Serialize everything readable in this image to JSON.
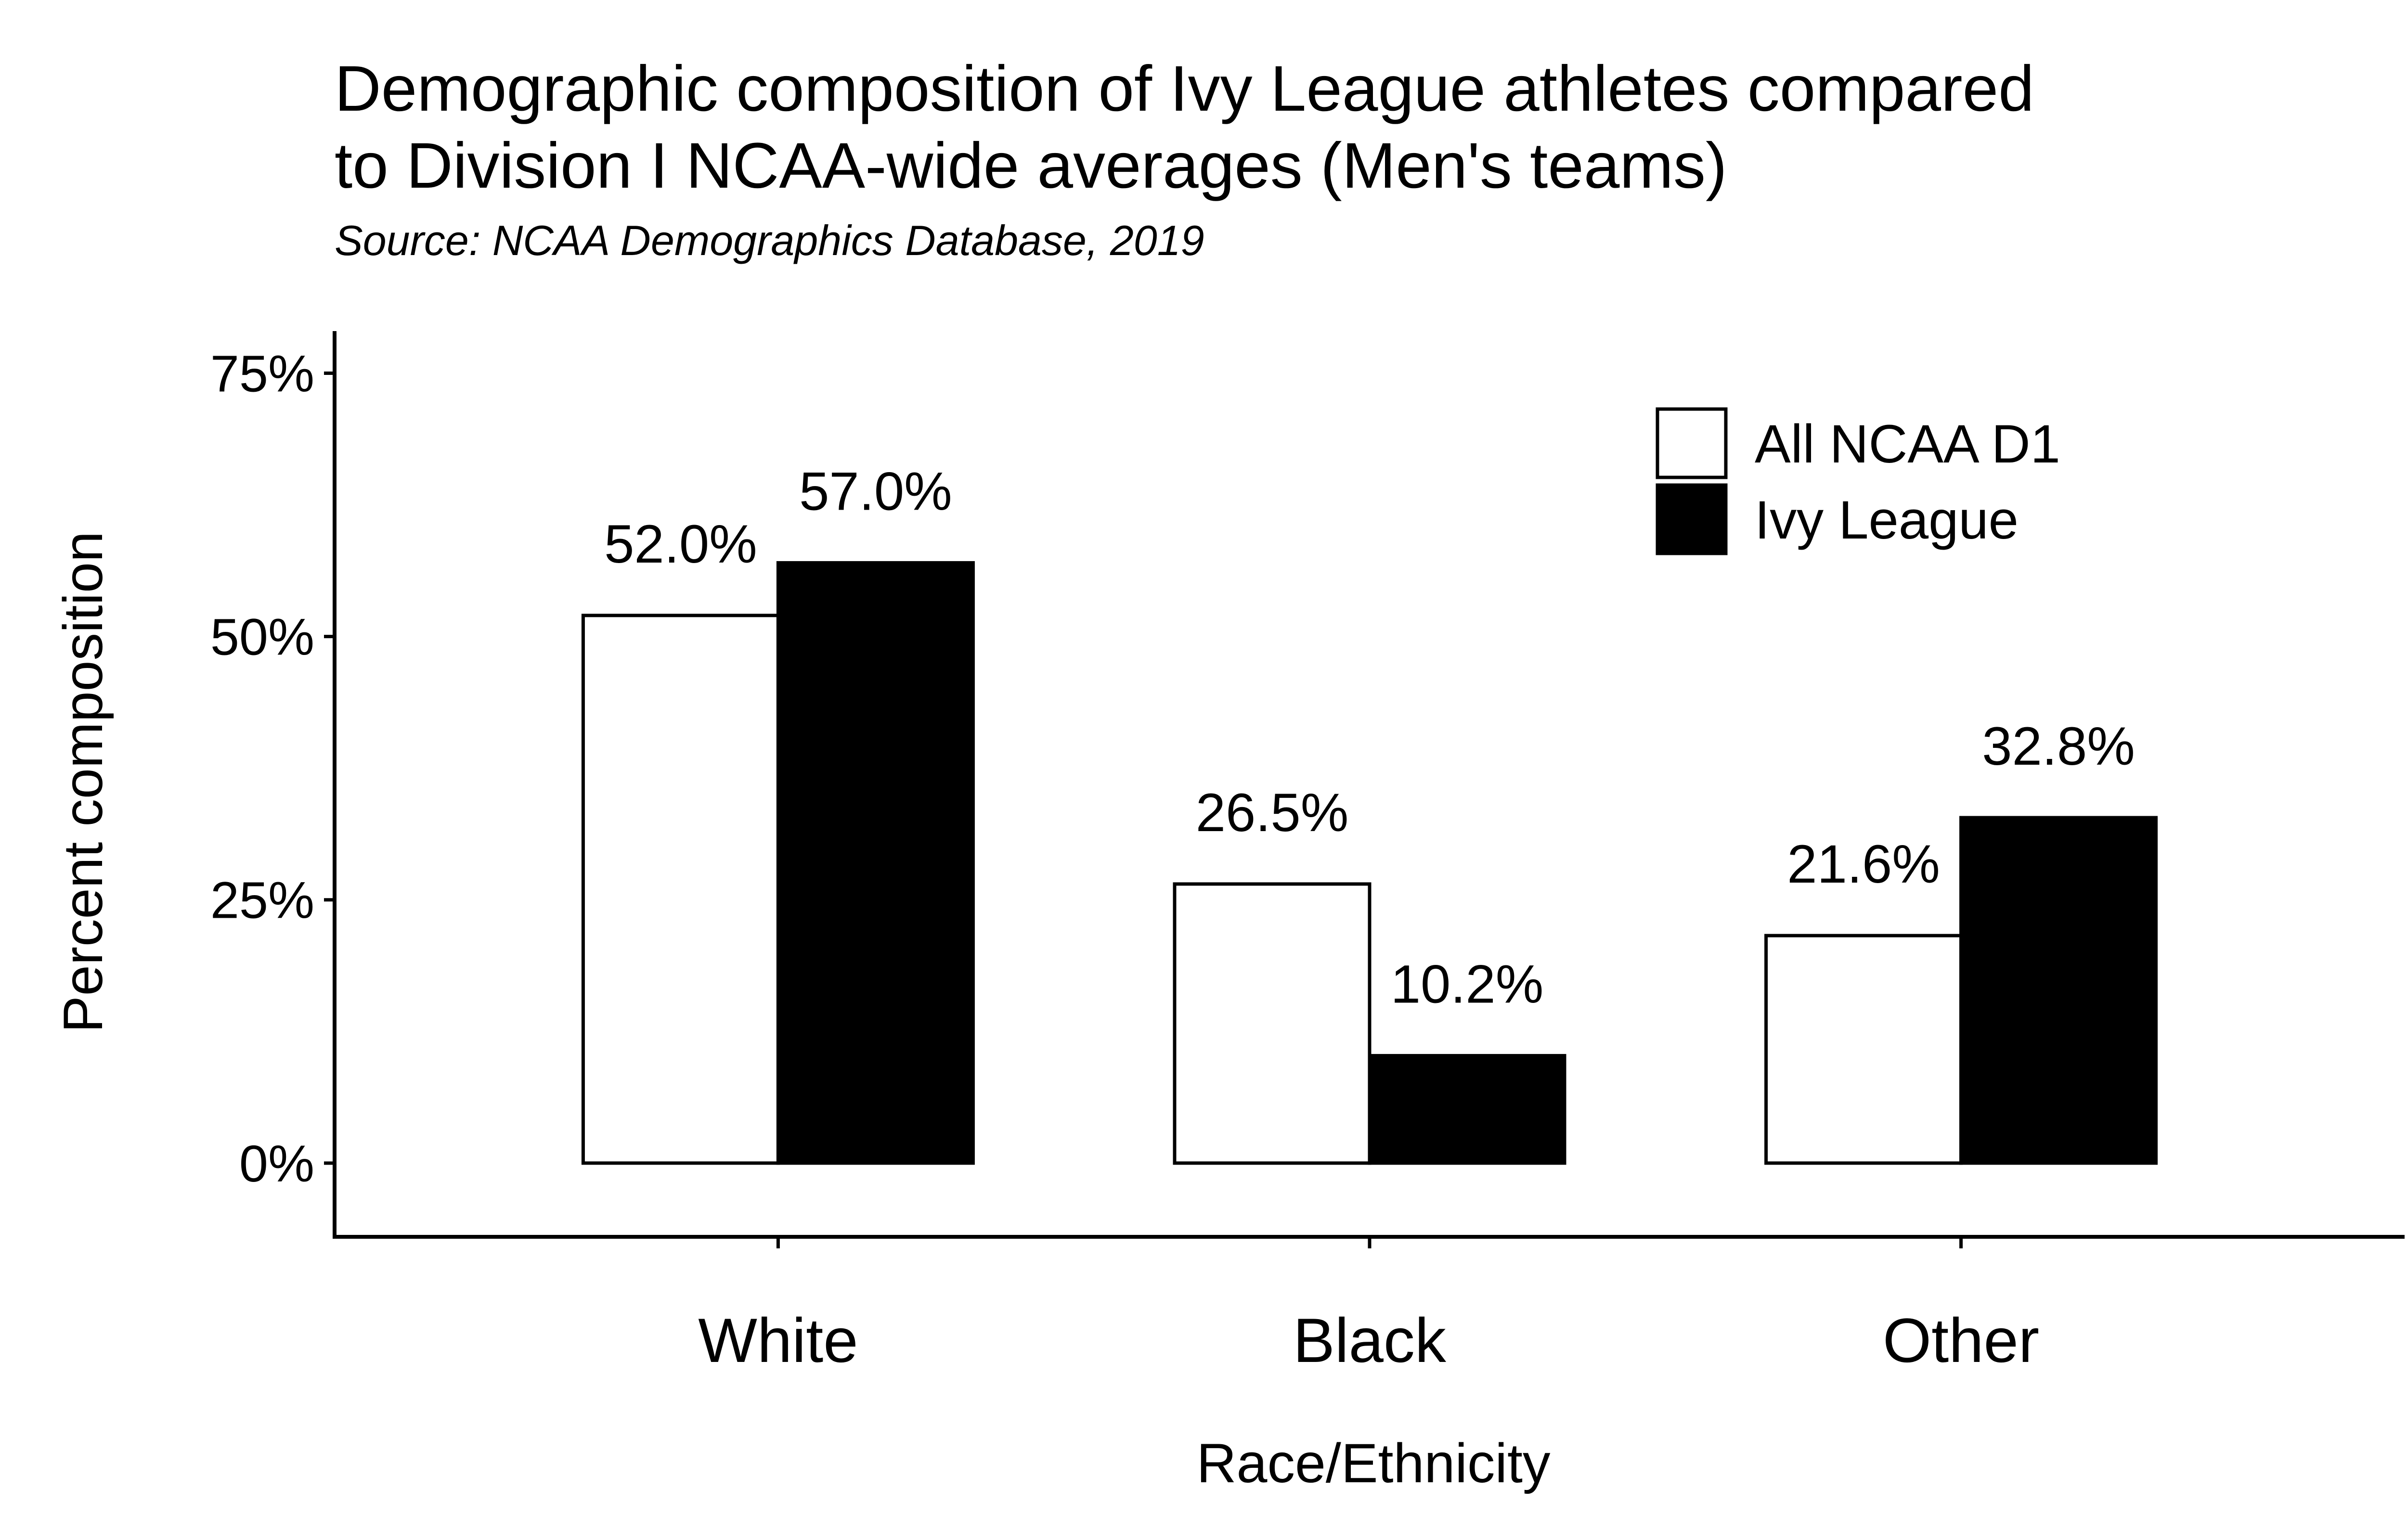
{
  "chart_data": {
    "type": "bar",
    "title_lines": [
      "Demographic composition of Ivy League athletes compared",
      "to Division I NCAA-wide averages (Men's teams)"
    ],
    "subtitle": "Source: NCAA Demographics Database, 2019",
    "xlabel": "Race/Ethnicity",
    "ylabel": "Percent composition",
    "categories": [
      "White",
      "Black",
      "Other"
    ],
    "series": [
      {
        "name": "All NCAA D1",
        "fill": "#ffffff",
        "stroke": "#000000",
        "values": [
          52.0,
          26.5,
          21.6
        ],
        "labels": [
          "52.0%",
          "26.5%",
          "21.6%"
        ]
      },
      {
        "name": "Ivy League",
        "fill": "#000000",
        "stroke": "#000000",
        "values": [
          57.0,
          10.2,
          32.8
        ],
        "labels": [
          "57.0%",
          "10.2%",
          "32.8%"
        ]
      }
    ],
    "ylim": [
      -7,
      79
    ],
    "yticks": [
      0,
      25,
      50,
      75
    ],
    "ytick_labels": [
      "0%",
      "25%",
      "50%",
      "75%"
    ],
    "grid": false,
    "legend_position": "top-right"
  }
}
